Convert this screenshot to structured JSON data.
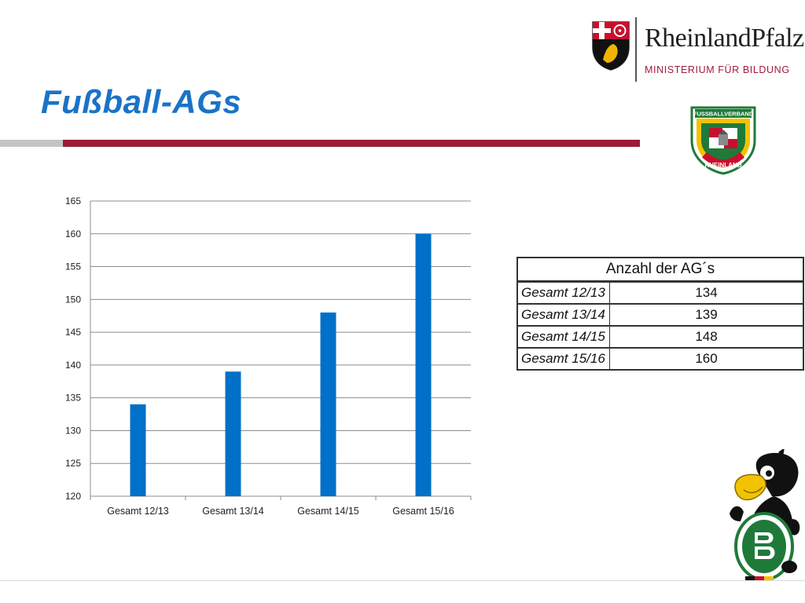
{
  "slide": {
    "title": "Fußball-AGs"
  },
  "logo_rlp": {
    "name": "RheinlandPfalz",
    "subtitle": "MINISTERIUM FÜR BILDUNG"
  },
  "logo_fv": {
    "top_text": "FUSSBALLVERBAND",
    "bottom_text": "RHEINLAND"
  },
  "colors": {
    "title": "#1a73c8",
    "bar": "#0070c8",
    "accent_red": "#9a1b37",
    "accent_gray": "#c4c4c4"
  },
  "chart_data": {
    "type": "bar",
    "categories": [
      "Gesamt 12/13",
      "Gesamt 13/14",
      "Gesamt 14/15",
      "Gesamt 15/16"
    ],
    "values": [
      134,
      139,
      148,
      160
    ],
    "ylim": [
      120,
      165
    ],
    "yticks": [
      120,
      125,
      130,
      135,
      140,
      145,
      150,
      155,
      160,
      165
    ],
    "grid": true,
    "legend": "none"
  },
  "table": {
    "header": "Anzahl der AG´s",
    "rows": [
      {
        "label": "Gesamt 12/13",
        "value": "134"
      },
      {
        "label": "Gesamt 13/14",
        "value": "139"
      },
      {
        "label": "Gesamt 14/15",
        "value": "148"
      },
      {
        "label": "Gesamt 15/16",
        "value": "160"
      }
    ]
  }
}
